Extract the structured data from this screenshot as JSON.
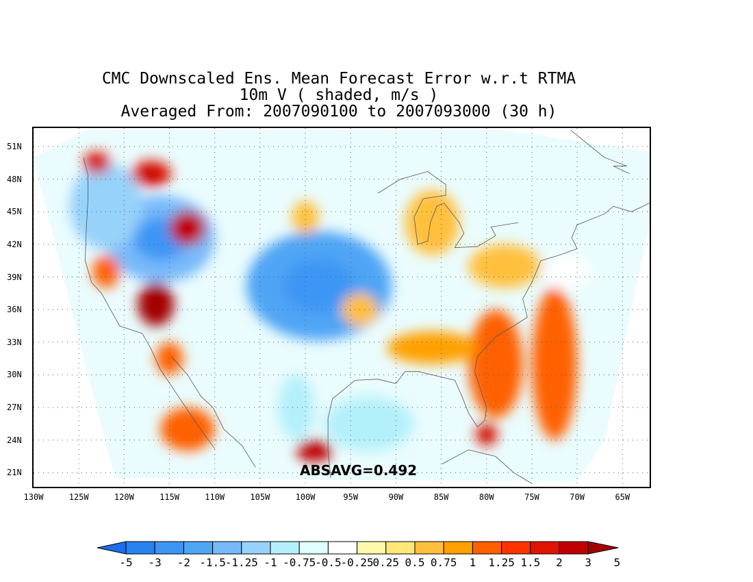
{
  "title": {
    "line1": "CMC Downscaled Ens. Mean Forecast Error w.r.t RTMA",
    "line2": "10m V ( shaded, m/s )",
    "line3": "Averaged From: 2007090100 to 2007093000 (30 h)"
  },
  "map": {
    "lon_range": [
      -130,
      -62
    ],
    "lat_range": [
      19.7,
      52.7
    ],
    "lat_labels": [
      "51N",
      "48N",
      "45N",
      "42N",
      "39N",
      "36N",
      "33N",
      "30N",
      "27N",
      "24N",
      "21N"
    ],
    "lat_values": [
      51,
      48,
      45,
      42,
      39,
      36,
      33,
      30,
      27,
      24,
      21
    ],
    "lon_labels": [
      "130W",
      "125W",
      "120W",
      "115W",
      "110W",
      "105W",
      "100W",
      "95W",
      "90W",
      "85W",
      "80W",
      "75W",
      "70W",
      "65W"
    ],
    "lon_values": [
      -130,
      -125,
      -120,
      -115,
      -110,
      -105,
      -100,
      -95,
      -90,
      -85,
      -80,
      -75,
      -70,
      -65
    ],
    "absavg_text": "ABSAVG=0.492",
    "anomalies": [
      {
        "lon": -98.5,
        "lat": 38.2,
        "value": -2.0,
        "rx": 8,
        "ry": 5
      },
      {
        "lon": -116,
        "lat": 42.5,
        "value": -1.5,
        "rx": 6,
        "ry": 4
      },
      {
        "lon": -122,
        "lat": 45.5,
        "value": -1.25,
        "rx": 4,
        "ry": 4
      },
      {
        "lon": -113,
        "lat": 43.5,
        "value": 2.0,
        "rx": 2,
        "ry": 1.6
      },
      {
        "lon": -116.5,
        "lat": 36.5,
        "value": 3.0,
        "rx": 2,
        "ry": 2
      },
      {
        "lon": -117,
        "lat": 48.5,
        "value": 1.5,
        "rx": 2.2,
        "ry": 1.2
      },
      {
        "lon": -123,
        "lat": 49.5,
        "value": 1.5,
        "rx": 1.5,
        "ry": 1
      },
      {
        "lon": -122,
        "lat": 39.5,
        "value": 1.0,
        "rx": 1.5,
        "ry": 1.5
      },
      {
        "lon": -99,
        "lat": 23,
        "value": 2.0,
        "rx": 2,
        "ry": 1
      },
      {
        "lon": -72.5,
        "lat": 31,
        "value": 1.0,
        "rx": 2.5,
        "ry": 7
      },
      {
        "lon": -79,
        "lat": 31,
        "value": 1.0,
        "rx": 3,
        "ry": 5
      },
      {
        "lon": -86,
        "lat": 32.5,
        "value": 0.75,
        "rx": 5,
        "ry": 1.5
      },
      {
        "lon": -113,
        "lat": 25,
        "value": 1.0,
        "rx": 3,
        "ry": 2
      },
      {
        "lon": -93,
        "lat": 25.5,
        "value": -1.0,
        "rx": 5,
        "ry": 2.5
      },
      {
        "lon": -101,
        "lat": 27,
        "value": -1.0,
        "rx": 2,
        "ry": 3
      },
      {
        "lon": -115,
        "lat": 31.5,
        "value": 1.0,
        "rx": 1.5,
        "ry": 1.5
      },
      {
        "lon": -86,
        "lat": 44,
        "value": 0.5,
        "rx": 3,
        "ry": 3
      },
      {
        "lon": -78,
        "lat": 40,
        "value": 0.5,
        "rx": 4,
        "ry": 2
      },
      {
        "lon": -100,
        "lat": 44.5,
        "value": 0.5,
        "rx": 1.5,
        "ry": 1.5
      },
      {
        "lon": -94,
        "lat": 36,
        "value": 0.5,
        "rx": 2,
        "ry": 1.5
      },
      {
        "lon": -71,
        "lat": 39.5,
        "value": -0.5,
        "rx": 2.5,
        "ry": 1.5
      },
      {
        "lon": -80,
        "lat": 24.5,
        "value": 1.5,
        "rx": 1.2,
        "ry": 1
      }
    ]
  },
  "colorbar": {
    "labels": [
      "-5",
      "-3",
      "-2",
      "-1.5",
      "-1.25",
      "-1",
      "-0.75",
      "-0.5",
      "-0.25",
      "0.25",
      "0.5",
      "0.75",
      "1",
      "1.25",
      "1.5",
      "2",
      "3",
      "5"
    ],
    "colors": [
      "#1e6eeb",
      "#2882f0",
      "#3c96f5",
      "#50a5f5",
      "#78b9fa",
      "#96d2fa",
      "#b4f0fa",
      "#e1ffff",
      "#ffffff",
      "#fffaaa",
      "#ffe878",
      "#ffc03c",
      "#ffa000",
      "#ff6000",
      "#ff3200",
      "#e11400",
      "#c00000",
      "#a50000"
    ]
  }
}
